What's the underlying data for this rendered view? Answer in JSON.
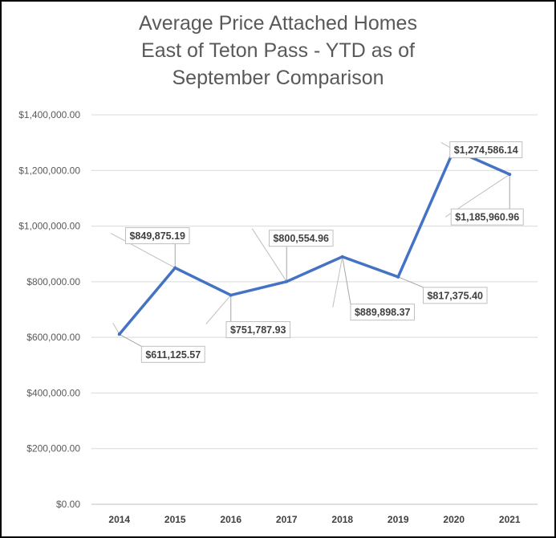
{
  "chart_data": {
    "type": "line",
    "title_lines": [
      "Average Price Attached Homes",
      "East of Teton Pass - YTD as of",
      "September Comparison"
    ],
    "categories": [
      "2014",
      "2015",
      "2016",
      "2017",
      "2018",
      "2019",
      "2020",
      "2021"
    ],
    "series": [
      {
        "values": [
          611125.57,
          849875.19,
          751787.93,
          800554.96,
          889898.37,
          817375.4,
          1274586.14,
          1185960.96
        ],
        "labels": [
          "$611,125.57",
          "$849,875.19",
          "$751,787.93",
          "$800,554.96",
          "$889,898.37",
          "$817,375.40",
          "$1,274,586.14",
          "$1,185,960.96"
        ],
        "color": "#4472C4"
      }
    ],
    "yticks": [
      0,
      200000,
      400000,
      600000,
      800000,
      1000000,
      1200000,
      1400000
    ],
    "ytick_labels": [
      "$0.00",
      "$200,000.00",
      "$400,000.00",
      "$600,000.00",
      "$800,000.00",
      "$1,000,000.00",
      "$1,200,000.00",
      "$1,400,000.00"
    ],
    "ylim": [
      0,
      1400000
    ],
    "grid": true,
    "legend": false,
    "colors": {
      "line": "#4472C4",
      "grid": "#d9d9d9",
      "text": "#595959",
      "label_border": "#bfbfbf"
    }
  }
}
